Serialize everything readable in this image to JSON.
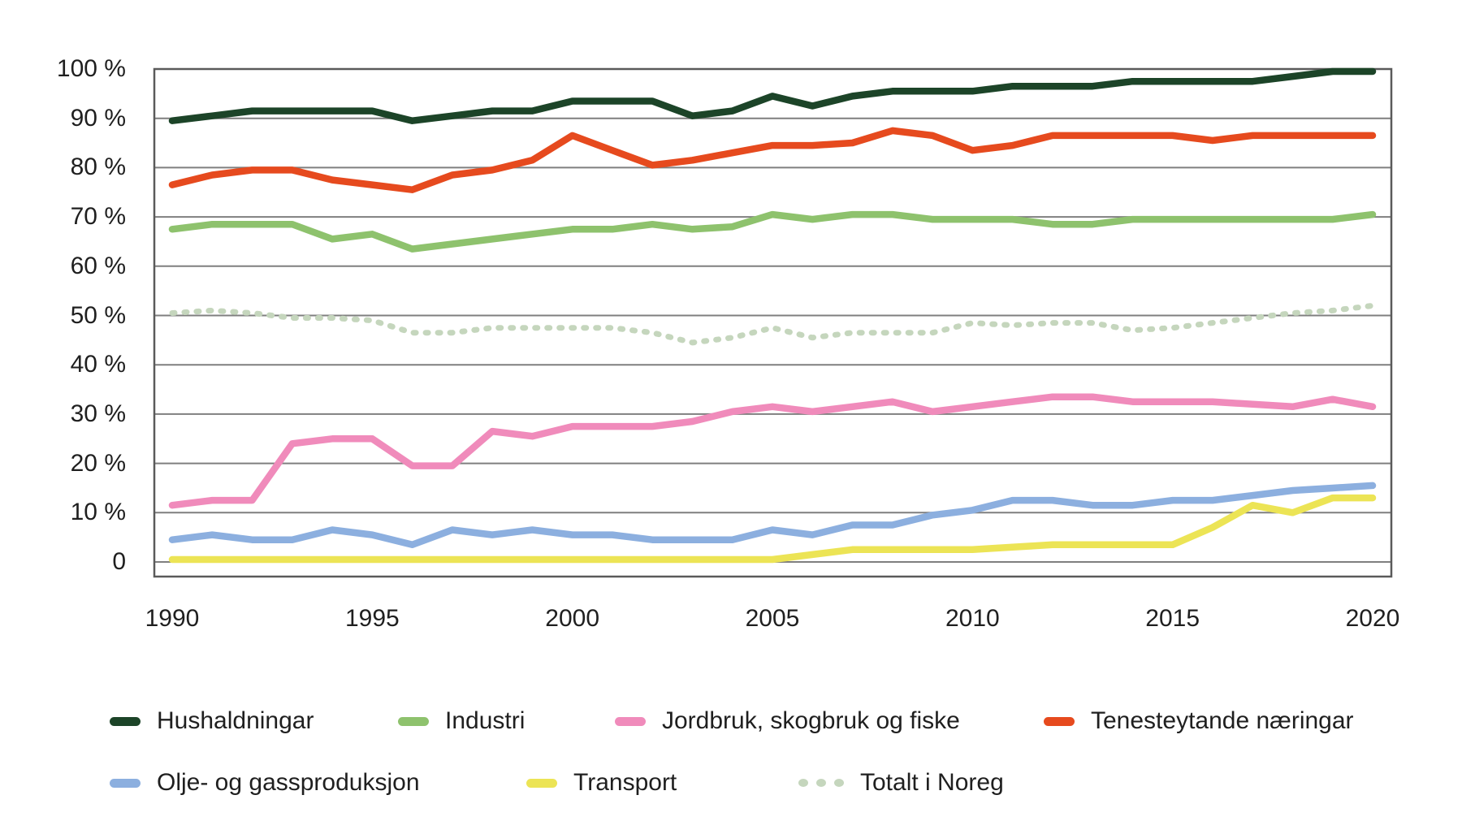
{
  "chart_data": {
    "type": "line",
    "title": "",
    "xlabel": "",
    "ylabel": "",
    "grid": "horizontal",
    "legend_position": "bottom",
    "ylim": [
      0,
      100
    ],
    "x": [
      1990,
      1991,
      1992,
      1993,
      1994,
      1995,
      1996,
      1997,
      1998,
      1999,
      2000,
      2001,
      2002,
      2003,
      2004,
      2005,
      2006,
      2007,
      2008,
      2009,
      2010,
      2011,
      2012,
      2013,
      2014,
      2015,
      2016,
      2017,
      2018,
      2019,
      2020
    ],
    "x_tick_years": [
      1990,
      1995,
      2000,
      2005,
      2010,
      2015,
      2020
    ],
    "x_tick_labels": [
      "1990",
      "1995",
      "2000",
      "2005",
      "2010",
      "2015",
      "2020"
    ],
    "y_tick_values": [
      100,
      90,
      80,
      70,
      60,
      50,
      40,
      30,
      20,
      10,
      0
    ],
    "y_tick_labels": [
      "100 %",
      "90 %",
      "80 %",
      "70 %",
      "60 %",
      "50 %",
      "40 %",
      "30 %",
      "20 %",
      "10 %",
      "0"
    ],
    "series": [
      {
        "name": "Hushaldningar",
        "color": "#1c4428",
        "style": "solid",
        "values": [
          89.5,
          90.5,
          91.5,
          91.5,
          91.5,
          91.5,
          89.5,
          90.5,
          91.5,
          91.5,
          93.5,
          93.5,
          93.5,
          90.5,
          91.5,
          94.5,
          92.5,
          94.5,
          95.5,
          95.5,
          95.5,
          96.5,
          96.5,
          96.5,
          97.5,
          97.5,
          97.5,
          97.5,
          98.5,
          99.5,
          99.5
        ]
      },
      {
        "name": "Industri",
        "color": "#8ec26d",
        "style": "solid",
        "values": [
          67.5,
          68.5,
          68.5,
          68.5,
          65.5,
          66.5,
          63.5,
          64.5,
          65.5,
          66.5,
          67.5,
          67.5,
          68.5,
          67.5,
          68,
          70.5,
          69.5,
          70.5,
          70.5,
          69.5,
          69.5,
          69.5,
          68.5,
          68.5,
          69.5,
          69.5,
          69.5,
          69.5,
          69.5,
          69.5,
          70.5
        ]
      },
      {
        "name": "Jordbruk, skogbruk og fiske",
        "color": "#f08bbb",
        "style": "solid",
        "values": [
          11.5,
          12.5,
          12.5,
          24,
          25,
          25,
          19.5,
          19.5,
          26.5,
          25.5,
          27.5,
          27.5,
          27.5,
          28.5,
          30.5,
          31.5,
          30.5,
          31.5,
          32.5,
          30.5,
          31.5,
          32.5,
          33.5,
          33.5,
          32.5,
          32.5,
          32.5,
          32,
          31.5,
          33,
          31.5
        ]
      },
      {
        "name": "Tenesteytande næringar",
        "color": "#e64a1e",
        "style": "solid",
        "values": [
          76.5,
          78.5,
          79.5,
          79.5,
          77.5,
          76.5,
          75.5,
          78.5,
          79.5,
          81.5,
          86.5,
          83.5,
          80.5,
          81.5,
          83,
          84.5,
          84.5,
          85,
          87.5,
          86.5,
          83.5,
          84.5,
          86.5,
          86.5,
          86.5,
          86.5,
          85.5,
          86.5,
          86.5,
          86.5,
          86.5
        ]
      },
      {
        "name": "Olje- og gassproduksjon",
        "color": "#8cafdf",
        "style": "solid",
        "values": [
          4.5,
          5.5,
          4.5,
          4.5,
          6.5,
          5.5,
          3.5,
          6.5,
          5.5,
          6.5,
          5.5,
          5.5,
          4.5,
          4.5,
          4.5,
          6.5,
          5.5,
          7.5,
          7.5,
          9.5,
          10.5,
          12.5,
          12.5,
          11.5,
          11.5,
          12.5,
          12.5,
          13.5,
          14.5,
          15,
          15.5
        ]
      },
      {
        "name": "Transport",
        "color": "#ece455",
        "style": "solid",
        "values": [
          0.5,
          0.5,
          0.5,
          0.5,
          0.5,
          0.5,
          0.5,
          0.5,
          0.5,
          0.5,
          0.5,
          0.5,
          0.5,
          0.5,
          0.5,
          0.5,
          1.5,
          2.5,
          2.5,
          2.5,
          2.5,
          3,
          3.5,
          3.5,
          3.5,
          3.5,
          7,
          11.5,
          10,
          13,
          13
        ]
      },
      {
        "name": "Totalt i Noreg",
        "color": "#c5d6bd",
        "style": "dotted",
        "values": [
          50.5,
          51,
          50.5,
          49.5,
          49.5,
          49,
          46.5,
          46.5,
          47.5,
          47.5,
          47.5,
          47.5,
          46.5,
          44.5,
          45.5,
          47.5,
          45.5,
          46.5,
          46.5,
          46.5,
          48.5,
          48,
          48.5,
          48.5,
          47,
          47.5,
          48.5,
          49.5,
          50.5,
          51,
          52
        ]
      }
    ],
    "axis_colors": {
      "gridline": "#7f7f7f",
      "frame": "#5a5a5a",
      "text": "#1f1f1f"
    }
  },
  "legend": {
    "row1_indices": [
      0,
      1,
      2,
      3
    ],
    "row2_indices": [
      4,
      5,
      6
    ]
  }
}
